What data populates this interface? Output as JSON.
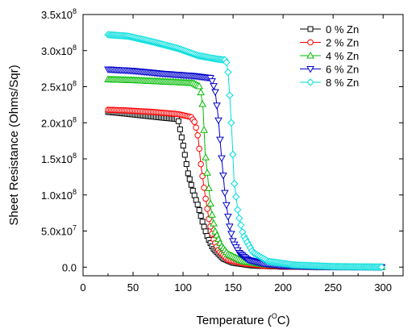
{
  "chart_data": {
    "type": "scatter",
    "xlabel_main": "Temperature (",
    "xlabel_sup": "O",
    "xlabel_end": "C)",
    "ylabel": "Sheet Resistance (Ohms/Sqr)",
    "xlim": [
      0,
      320
    ],
    "ylim": [
      -12000000.0,
      350000000.0
    ],
    "x_ticks": [
      0,
      50,
      100,
      150,
      200,
      250,
      300
    ],
    "x_tick_labels": [
      "0",
      "50",
      "100",
      "150",
      "200",
      "250",
      "300"
    ],
    "y_ticks": [
      0,
      50000000.0,
      100000000.0,
      150000000.0,
      200000000.0,
      250000000.0,
      300000000.0,
      350000000.0
    ],
    "y_tick_labels": [
      {
        "m": "0.0",
        "e": ""
      },
      {
        "m": "5.0x10",
        "e": "7"
      },
      {
        "m": "1.0x10",
        "e": "8"
      },
      {
        "m": "1.5x10",
        "e": "8"
      },
      {
        "m": "2.0x10",
        "e": "8"
      },
      {
        "m": "2.5x10",
        "e": "8"
      },
      {
        "m": "3.0x10",
        "e": "8"
      },
      {
        "m": "3.5x10",
        "e": "8"
      }
    ],
    "legend_position": "top-right",
    "series": [
      {
        "name": "0 % Zn",
        "color": "#000000",
        "marker": "square",
        "points": [
          [
            25,
            215000000.0
          ],
          [
            40,
            213000000.0
          ],
          [
            60,
            210000000.0
          ],
          [
            80,
            207000000.0
          ],
          [
            95,
            205000000.0
          ],
          [
            100,
            170000000.0
          ],
          [
            105,
            130000000.0
          ],
          [
            110,
            105000000.0
          ],
          [
            115,
            85000000.0
          ],
          [
            120,
            60000000.0
          ],
          [
            125,
            40000000.0
          ],
          [
            130,
            26000000.0
          ],
          [
            140,
            12000000.0
          ],
          [
            150,
            6000000.0
          ],
          [
            170,
            2000000.0
          ],
          [
            200,
            500000.0
          ],
          [
            240,
            200000.0
          ],
          [
            300,
            0.0
          ]
        ]
      },
      {
        "name": "2 % Zn",
        "color": "#ff0000",
        "marker": "circle",
        "points": [
          [
            25,
            218000000.0
          ],
          [
            45,
            217000000.0
          ],
          [
            70,
            215000000.0
          ],
          [
            95,
            212000000.0
          ],
          [
            108,
            208000000.0
          ],
          [
            112,
            200000000.0
          ],
          [
            115,
            180000000.0
          ],
          [
            118,
            140000000.0
          ],
          [
            122,
            100000000.0
          ],
          [
            126,
            65000000.0
          ],
          [
            130,
            40000000.0
          ],
          [
            136,
            22000000.0
          ],
          [
            145,
            10000000.0
          ],
          [
            160,
            5000000.0
          ],
          [
            180,
            2000000.0
          ],
          [
            210,
            500000.0
          ],
          [
            250,
            200000.0
          ],
          [
            300,
            0.0
          ]
        ]
      },
      {
        "name": "4 % Zn",
        "color": "#00bb00",
        "marker": "triangle-up",
        "points": [
          [
            25,
            260000000.0
          ],
          [
            50,
            259000000.0
          ],
          [
            80,
            257000000.0
          ],
          [
            110,
            255000000.0
          ],
          [
            117,
            250000000.0
          ],
          [
            120,
            220000000.0
          ],
          [
            122,
            160000000.0
          ],
          [
            125,
            120000000.0
          ],
          [
            128,
            80000000.0
          ],
          [
            132,
            50000000.0
          ],
          [
            138,
            30000000.0
          ],
          [
            145,
            18000000.0
          ],
          [
            160,
            8000000.0
          ],
          [
            180,
            4000000.0
          ],
          [
            210,
            1000000.0
          ],
          [
            250,
            300000.0
          ],
          [
            300,
            0.0
          ]
        ]
      },
      {
        "name": "6 % Zn",
        "color": "#0000cc",
        "marker": "triangle-down",
        "points": [
          [
            25,
            274000000.0
          ],
          [
            50,
            272000000.0
          ],
          [
            80,
            268000000.0
          ],
          [
            110,
            265000000.0
          ],
          [
            128,
            262000000.0
          ],
          [
            132,
            245000000.0
          ],
          [
            135,
            210000000.0
          ],
          [
            138,
            160000000.0
          ],
          [
            142,
            100000000.0
          ],
          [
            146,
            60000000.0
          ],
          [
            150,
            35000000.0
          ],
          [
            156,
            20000000.0
          ],
          [
            165,
            10000000.0
          ],
          [
            180,
            5000000.0
          ],
          [
            200,
            2000000.0
          ],
          [
            230,
            800000.0
          ],
          [
            300,
            0.0
          ]
        ]
      },
      {
        "name": "8 % Zn",
        "color": "#00dddd",
        "marker": "diamond",
        "points": [
          [
            25,
            322000000.0
          ],
          [
            45,
            320000000.0
          ],
          [
            70,
            312000000.0
          ],
          [
            95,
            303000000.0
          ],
          [
            115,
            293000000.0
          ],
          [
            135,
            288000000.0
          ],
          [
            143,
            287000000.0
          ],
          [
            145,
            270000000.0
          ],
          [
            147,
            230000000.0
          ],
          [
            149,
            180000000.0
          ],
          [
            151,
            120000000.0
          ],
          [
            155,
            75000000.0
          ],
          [
            160,
            45000000.0
          ],
          [
            170,
            20000000.0
          ],
          [
            185,
            8000000.0
          ],
          [
            210,
            3000000.0
          ],
          [
            250,
            800000.0
          ],
          [
            300,
            0.0
          ]
        ]
      }
    ]
  }
}
